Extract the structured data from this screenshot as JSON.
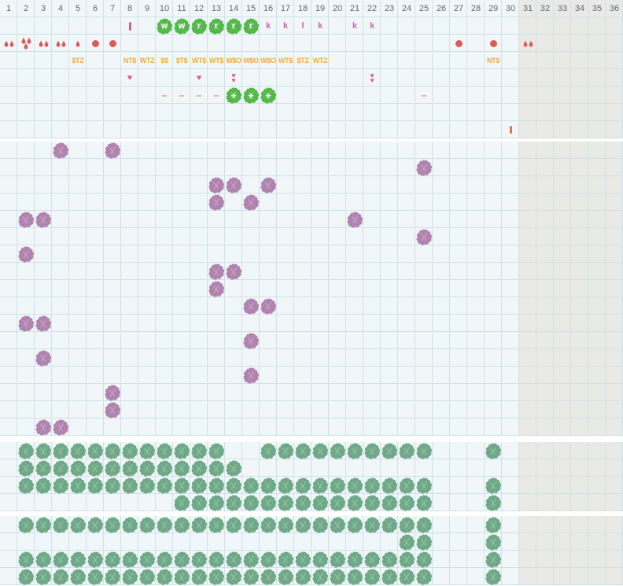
{
  "colors": {
    "bg": "#f1f7f8",
    "gray": "#e9e9e6",
    "grid": "#cfe1ea",
    "header_text": "#5c6a73",
    "red": "#dc5a5a",
    "heart": "#dd5f8f",
    "mauve": "#c368ae",
    "pinkbar": "#d4648f",
    "redbar": "#e2714d",
    "orange": "#f4a93d",
    "dash_orange": "#ef8f5a",
    "green_bright": "#54b84a",
    "green_sage": "#6fa988",
    "purple": "#b184af"
  },
  "header": {
    "columns": [
      "1",
      "2",
      "3",
      "4",
      "5",
      "6",
      "7",
      "8",
      "9",
      "10",
      "11",
      "12",
      "13",
      "14",
      "15",
      "16",
      "17",
      "18",
      "19",
      "20",
      "21",
      "22",
      "23",
      "24",
      "25",
      "26",
      "27",
      "28",
      "29",
      "30",
      "31",
      "32",
      "33",
      "34",
      "35",
      "36"
    ]
  },
  "grid": {
    "total_columns": 36,
    "gray_from_column": 31
  },
  "top_section": {
    "rows": 8,
    "markers": [
      {
        "c": 8,
        "r": 1,
        "t": "pinkbar"
      },
      {
        "c": 10,
        "r": 1,
        "t": "sprite",
        "v": "w"
      },
      {
        "c": 11,
        "r": 1,
        "t": "sprite",
        "v": "w"
      },
      {
        "c": 12,
        "r": 1,
        "t": "sprite",
        "v": "r"
      },
      {
        "c": 13,
        "r": 1,
        "t": "sprite",
        "v": "r"
      },
      {
        "c": 14,
        "r": 1,
        "t": "sprite",
        "v": "r"
      },
      {
        "c": 15,
        "r": 1,
        "t": "sprite",
        "v": "r"
      },
      {
        "c": 16,
        "r": 1,
        "t": "letter",
        "v": "k"
      },
      {
        "c": 17,
        "r": 1,
        "t": "letter",
        "v": "k"
      },
      {
        "c": 18,
        "r": 1,
        "t": "letter",
        "v": "l"
      },
      {
        "c": 19,
        "r": 1,
        "t": "letter",
        "v": "k"
      },
      {
        "c": 21,
        "r": 1,
        "t": "letter",
        "v": "k"
      },
      {
        "c": 22,
        "r": 1,
        "t": "letter",
        "v": "k"
      },
      {
        "c": 1,
        "r": 2,
        "t": "drops2"
      },
      {
        "c": 2,
        "r": 2,
        "t": "drops3"
      },
      {
        "c": 3,
        "r": 2,
        "t": "drops2"
      },
      {
        "c": 4,
        "r": 2,
        "t": "drops2"
      },
      {
        "c": 5,
        "r": 2,
        "t": "drop1"
      },
      {
        "c": 6,
        "r": 2,
        "t": "dot"
      },
      {
        "c": 7,
        "r": 2,
        "t": "dot"
      },
      {
        "c": 27,
        "r": 2,
        "t": "dot"
      },
      {
        "c": 29,
        "r": 2,
        "t": "dot"
      },
      {
        "c": 31,
        "r": 2,
        "t": "drops2"
      },
      {
        "c": 5,
        "r": 3,
        "t": "code",
        "v": "$TZ"
      },
      {
        "c": 8,
        "r": 3,
        "t": "code",
        "v": "NT$"
      },
      {
        "c": 9,
        "r": 3,
        "t": "code",
        "v": "WTZ"
      },
      {
        "c": 10,
        "r": 3,
        "t": "code",
        "v": "$$"
      },
      {
        "c": 11,
        "r": 3,
        "t": "code",
        "v": "$T$"
      },
      {
        "c": 12,
        "r": 3,
        "t": "code",
        "v": "WT$"
      },
      {
        "c": 13,
        "r": 3,
        "t": "code",
        "v": "WT$"
      },
      {
        "c": 14,
        "r": 3,
        "t": "code",
        "v": "W$O"
      },
      {
        "c": 15,
        "r": 3,
        "t": "code",
        "v": "W$O"
      },
      {
        "c": 16,
        "r": 3,
        "t": "code",
        "v": "W$O"
      },
      {
        "c": 17,
        "r": 3,
        "t": "code",
        "v": "WT$"
      },
      {
        "c": 18,
        "r": 3,
        "t": "code",
        "v": "$TZ"
      },
      {
        "c": 19,
        "r": 3,
        "t": "code",
        "v": "WTZ"
      },
      {
        "c": 29,
        "r": 3,
        "t": "code",
        "v": "NT$"
      },
      {
        "c": 8,
        "r": 4,
        "t": "heart"
      },
      {
        "c": 12,
        "r": 4,
        "t": "heart"
      },
      {
        "c": 14,
        "r": 4,
        "t": "heart2"
      },
      {
        "c": 22,
        "r": 4,
        "t": "heart2"
      },
      {
        "c": 10,
        "r": 5,
        "t": "dash"
      },
      {
        "c": 11,
        "r": 5,
        "t": "dash"
      },
      {
        "c": 12,
        "r": 5,
        "t": "dash"
      },
      {
        "c": 13,
        "r": 5,
        "t": "dash"
      },
      {
        "c": 14,
        "r": 5,
        "t": "sprite",
        "v": "+"
      },
      {
        "c": 15,
        "r": 5,
        "t": "sprite",
        "v": "+"
      },
      {
        "c": 16,
        "r": 5,
        "t": "sprite",
        "v": "+"
      },
      {
        "c": 25,
        "r": 5,
        "t": "dash"
      },
      {
        "c": 30,
        "r": 7,
        "t": "redbar"
      }
    ]
  },
  "middle_section": {
    "rows": 17,
    "purple_flowers": [
      [
        4,
        0
      ],
      [
        7,
        0
      ],
      [
        25,
        1
      ],
      [
        13,
        2
      ],
      [
        14,
        2
      ],
      [
        16,
        2
      ],
      [
        13,
        3
      ],
      [
        15,
        3
      ],
      [
        2,
        4
      ],
      [
        3,
        4
      ],
      [
        21,
        4
      ],
      [
        25,
        5
      ],
      [
        2,
        6
      ],
      [
        13,
        7
      ],
      [
        14,
        7
      ],
      [
        13,
        8
      ],
      [
        15,
        9
      ],
      [
        16,
        9
      ],
      [
        2,
        10
      ],
      [
        3,
        10
      ],
      [
        15,
        11
      ],
      [
        3,
        12
      ],
      [
        15,
        13
      ],
      [
        7,
        14
      ],
      [
        7,
        15
      ],
      [
        3,
        16
      ],
      [
        4,
        16
      ]
    ]
  },
  "green_section_a": {
    "rows": 4,
    "flower_rows": [
      "2-13,16-25,29",
      "2-14",
      "2-25,29",
      "11-25,29"
    ]
  },
  "green_section_b": {
    "rows": 4,
    "flower_rows": [
      "2-25,29",
      "24-25,29",
      "2-25,29",
      "2-25,29"
    ]
  }
}
